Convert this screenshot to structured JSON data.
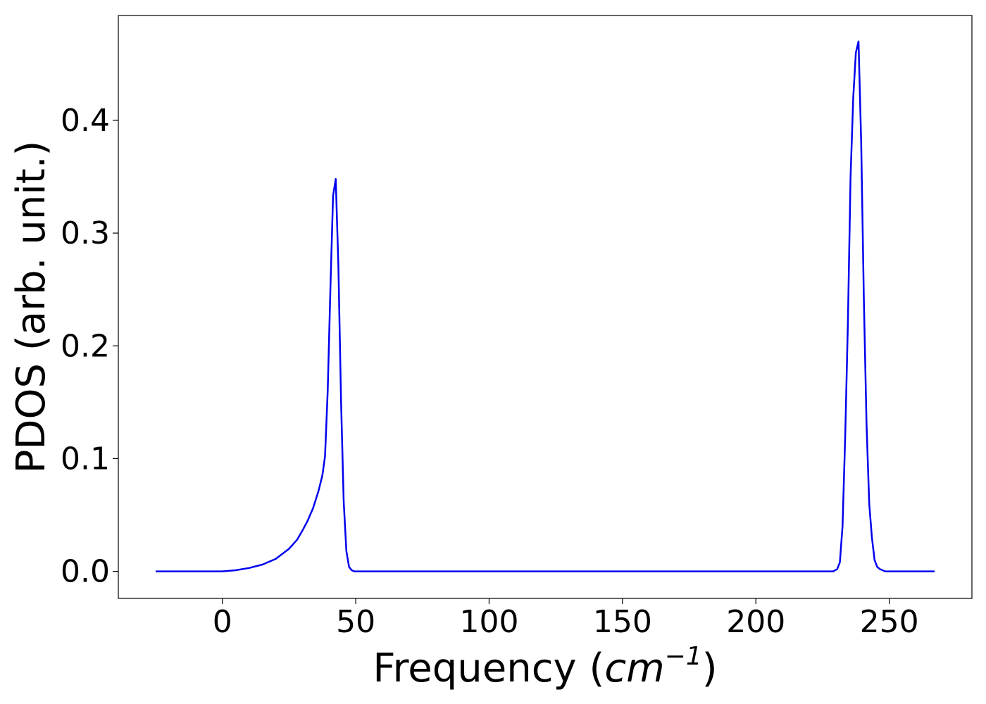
{
  "chart_data": {
    "type": "line",
    "title": "",
    "xlabel": "Frequency (",
    "xlabel_unit": "cm",
    "xlabel_exp": "−1",
    "xlabel_close": ")",
    "ylabel": "PDOS (arb. unit.)",
    "xlim": [
      -39,
      281
    ],
    "ylim": [
      -0.024,
      0.493
    ],
    "x_ticks": [
      0,
      50,
      100,
      150,
      200,
      250
    ],
    "x_tick_labels": [
      "0",
      "50",
      "100",
      "150",
      "200",
      "250"
    ],
    "y_ticks": [
      0.0,
      0.1,
      0.2,
      0.3,
      0.4
    ],
    "y_tick_labels": [
      "0.0",
      "0.1",
      "0.2",
      "0.3",
      "0.4"
    ],
    "grid": false,
    "series": [
      {
        "color": "#0000ee",
        "x": [
          -25,
          0,
          5,
          10,
          15,
          20,
          25,
          28,
          30,
          32,
          34,
          36,
          37.5,
          38.5,
          39.5,
          40.5,
          41.5,
          42.5,
          43.5,
          44.5,
          45.5,
          46.5,
          47.5,
          48.5,
          49.5,
          50.5,
          52,
          54,
          60,
          100,
          150,
          200,
          229,
          230.5,
          231.5,
          232.5,
          233.5,
          234.5,
          235.5,
          236.5,
          237.5,
          238.5,
          239.5,
          240.5,
          241.5,
          242.5,
          243.5,
          244.5,
          245.5,
          246.5,
          247.5,
          248.5,
          249.5,
          251,
          255,
          267
        ],
        "y": [
          0,
          0,
          0.001,
          0.003,
          0.006,
          0.011,
          0.02,
          0.028,
          0.036,
          0.045,
          0.056,
          0.071,
          0.085,
          0.102,
          0.16,
          0.25,
          0.333,
          0.348,
          0.27,
          0.15,
          0.062,
          0.018,
          0.004,
          0.001,
          0,
          0,
          0,
          0,
          0,
          0,
          0,
          0,
          0,
          0.002,
          0.008,
          0.04,
          0.12,
          0.22,
          0.35,
          0.42,
          0.46,
          0.47,
          0.38,
          0.24,
          0.13,
          0.06,
          0.03,
          0.01,
          0.004,
          0.002,
          0.001,
          0,
          0,
          0,
          0,
          0
        ]
      }
    ]
  }
}
